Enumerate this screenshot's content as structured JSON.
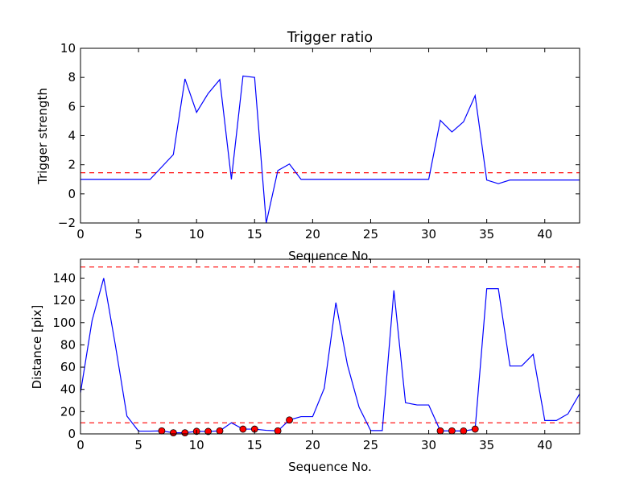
{
  "chart_data": [
    {
      "type": "line",
      "title": "Trigger ratio",
      "xlabel": "Sequence No.",
      "ylabel": "Trigger strength",
      "xlim": [
        0,
        43
      ],
      "ylim": [
        -2,
        10
      ],
      "xticks": [
        0,
        5,
        10,
        15,
        20,
        25,
        30,
        35,
        40
      ],
      "yticks": [
        -2,
        0,
        2,
        4,
        6,
        8,
        10
      ],
      "xtick_labels": [
        "0",
        "5",
        "10",
        "15",
        "20",
        "25",
        "30",
        "35",
        "40"
      ],
      "ytick_labels": [
        "−2",
        "0",
        "2",
        "4",
        "6",
        "8",
        "10"
      ],
      "line_color": "#0000ff",
      "threshold": {
        "value": 1.45,
        "color": "#ff0000",
        "style": "dashed"
      },
      "series": [
        {
          "x": [
            0,
            1,
            2,
            3,
            4,
            5,
            6,
            7,
            8,
            9,
            10,
            11,
            12,
            13,
            14,
            15,
            16,
            17,
            18,
            19,
            20,
            21,
            22,
            23,
            24,
            25,
            26,
            27,
            28,
            29,
            30,
            31,
            32,
            33,
            34,
            35,
            36,
            37,
            38,
            39,
            40,
            41,
            42,
            43
          ],
          "values": [
            1,
            1,
            1,
            1,
            1,
            1,
            1,
            1.85,
            2.7,
            7.9,
            5.6,
            6.9,
            7.85,
            1,
            8.1,
            8.0,
            -2,
            1.6,
            2.05,
            1,
            1,
            1,
            1,
            1,
            1,
            1,
            1,
            1,
            1,
            1,
            1,
            5.05,
            4.25,
            4.95,
            6.75,
            0.95,
            0.7,
            0.95,
            0.95,
            0.95,
            0.95,
            0.95,
            0.95,
            0.95
          ]
        }
      ]
    },
    {
      "type": "line",
      "title": "",
      "xlabel": "Sequence No.",
      "ylabel": "Distance [pix]",
      "xlim": [
        0,
        43
      ],
      "ylim": [
        0,
        157
      ],
      "xticks": [
        0,
        5,
        10,
        15,
        20,
        25,
        30,
        35,
        40
      ],
      "yticks": [
        0,
        20,
        40,
        60,
        80,
        100,
        120,
        140
      ],
      "xtick_labels": [
        "0",
        "5",
        "10",
        "15",
        "20",
        "25",
        "30",
        "35",
        "40"
      ],
      "ytick_labels": [
        "0",
        "20",
        "40",
        "60",
        "80",
        "100",
        "120",
        "140"
      ],
      "line_color": "#0000ff",
      "marker_color": "#ff0000",
      "thresholds": [
        {
          "value": 150,
          "color": "#ff0000",
          "style": "dashed"
        },
        {
          "value": 10,
          "color": "#ff0000",
          "style": "dashed"
        }
      ],
      "series": [
        {
          "x": [
            0,
            1,
            2,
            3,
            4,
            5,
            6,
            7,
            8,
            9,
            10,
            11,
            12,
            13,
            14,
            15,
            16,
            17,
            18,
            19,
            20,
            21,
            22,
            23,
            24,
            25,
            26,
            27,
            28,
            29,
            30,
            31,
            32,
            33,
            34,
            35,
            36,
            37,
            38,
            39,
            40,
            41,
            42,
            43
          ],
          "values": [
            37,
            102,
            140,
            80,
            16,
            2.5,
            2.5,
            2.7,
            1,
            1,
            2.3,
            2.2,
            2.7,
            10,
            4.3,
            4.3,
            3.2,
            2.7,
            12.5,
            15.5,
            15.5,
            41,
            118,
            62,
            24,
            3,
            3,
            129,
            28,
            26,
            26,
            2.7,
            2.7,
            2.6,
            4.3,
            130.5,
            130.5,
            61,
            61,
            71.5,
            12,
            12,
            18,
            36
          ]
        }
      ],
      "markers": {
        "x": [
          7,
          8,
          9,
          10,
          11,
          12,
          14,
          15,
          17,
          18,
          31,
          32,
          33,
          34
        ],
        "values": [
          2.7,
          1,
          1,
          2.3,
          2.2,
          2.7,
          4.3,
          4.3,
          2.7,
          12.5,
          2.7,
          2.7,
          2.6,
          4.3
        ]
      }
    }
  ]
}
